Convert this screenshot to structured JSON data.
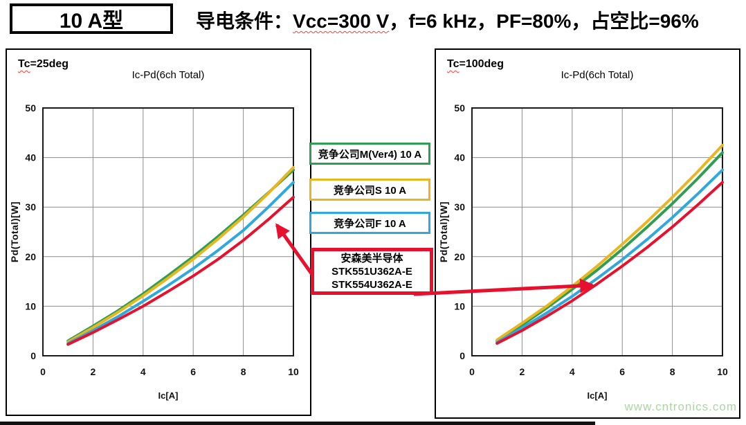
{
  "header": {
    "type_label": "10 A型",
    "condition_prefix": "导电条件：",
    "condition_vcc": "Vcc=300 V",
    "condition_rest": "，f=6 kHz，PF=80%，占空比=96%"
  },
  "annotations": {
    "competitor_boxes": [
      {
        "label": "竞争公司M(Ver4) 10 A",
        "color": "#2f9e52"
      },
      {
        "label": "竞争公司S 10 A",
        "color": "#e8b71e"
      },
      {
        "label": "竞争公司F 10 A",
        "color": "#2fa9dd"
      }
    ],
    "onsemi_box": {
      "color": "#e8112d",
      "lines": [
        "安森美半导体",
        "STK551U362A-E",
        "STK554U362A-E"
      ]
    }
  },
  "watermark": "www.cntronics.com",
  "chart_data": [
    {
      "type": "line",
      "panel_label": {
        "wavy": "Tc",
        "rest": "=25deg"
      },
      "title": "Ic-Pd(6ch Total)",
      "xlabel": "Ic[A]",
      "ylabel": "Pd(Total)[W]",
      "xlim": [
        0,
        10
      ],
      "ylim": [
        0,
        50
      ],
      "xticks": [
        0,
        2,
        4,
        6,
        8,
        10
      ],
      "yticks": [
        0,
        10,
        20,
        30,
        40,
        50
      ],
      "grid": true,
      "legend_position": "external-middle",
      "x": [
        1,
        2,
        3,
        4,
        5,
        6,
        7,
        8,
        9,
        10
      ],
      "series": [
        {
          "name": "竞争公司M(Ver4) 10 A",
          "color": "#2f9e52",
          "values": [
            3.0,
            6.0,
            9.1,
            12.5,
            16.2,
            20.0,
            24.1,
            28.4,
            32.9,
            37.5
          ]
        },
        {
          "name": "竞争公司S 10 A",
          "color": "#e8b71e",
          "values": [
            2.8,
            5.7,
            8.8,
            12.1,
            15.7,
            19.5,
            23.6,
            28.0,
            32.8,
            38.0
          ]
        },
        {
          "name": "竞争公司F 10 A",
          "color": "#2fa9dd",
          "values": [
            2.5,
            5.1,
            7.9,
            11.0,
            14.2,
            17.6,
            21.3,
            25.3,
            30.0,
            35.0
          ]
        },
        {
          "name": "安森美半导体 STK551U362A-E / STK554U362A-E",
          "color": "#e8112d",
          "values": [
            2.3,
            4.7,
            7.3,
            10.0,
            13.0,
            16.1,
            19.5,
            23.3,
            27.5,
            32.0
          ]
        }
      ]
    },
    {
      "type": "line",
      "panel_label": {
        "wavy": "Tc",
        "rest": "=100deg"
      },
      "title": "Ic-Pd(6ch Total)",
      "xlabel": "Ic[A]",
      "ylabel": "Pd(Total)[W]",
      "xlim": [
        0,
        10
      ],
      "ylim": [
        0,
        50
      ],
      "xticks": [
        0,
        2,
        4,
        6,
        8,
        10
      ],
      "yticks": [
        0,
        10,
        20,
        30,
        40,
        50
      ],
      "grid": true,
      "legend_position": "external-middle",
      "x": [
        1,
        2,
        3,
        4,
        5,
        6,
        7,
        8,
        9,
        10
      ],
      "series": [
        {
          "name": "竞争公司M(Ver4) 10 A",
          "color": "#2f9e52",
          "values": [
            3.0,
            6.2,
            9.7,
            13.4,
            17.3,
            21.5,
            26.0,
            30.7,
            35.7,
            41.0
          ]
        },
        {
          "name": "竞争公司S 10 A",
          "color": "#e8b71e",
          "values": [
            3.2,
            6.6,
            10.1,
            14.0,
            18.1,
            22.5,
            27.1,
            32.0,
            37.1,
            42.5
          ]
        },
        {
          "name": "竞争公司F 10 A",
          "color": "#2fa9dd",
          "values": [
            2.7,
            5.6,
            8.7,
            12.0,
            15.6,
            19.4,
            23.5,
            27.9,
            32.6,
            37.5
          ]
        },
        {
          "name": "安森美半导体 STK551U362A-E / STK554U362A-E",
          "color": "#e8112d",
          "values": [
            2.5,
            5.1,
            8.0,
            11.1,
            14.5,
            18.1,
            21.9,
            26.0,
            30.4,
            35.0
          ]
        }
      ]
    }
  ]
}
